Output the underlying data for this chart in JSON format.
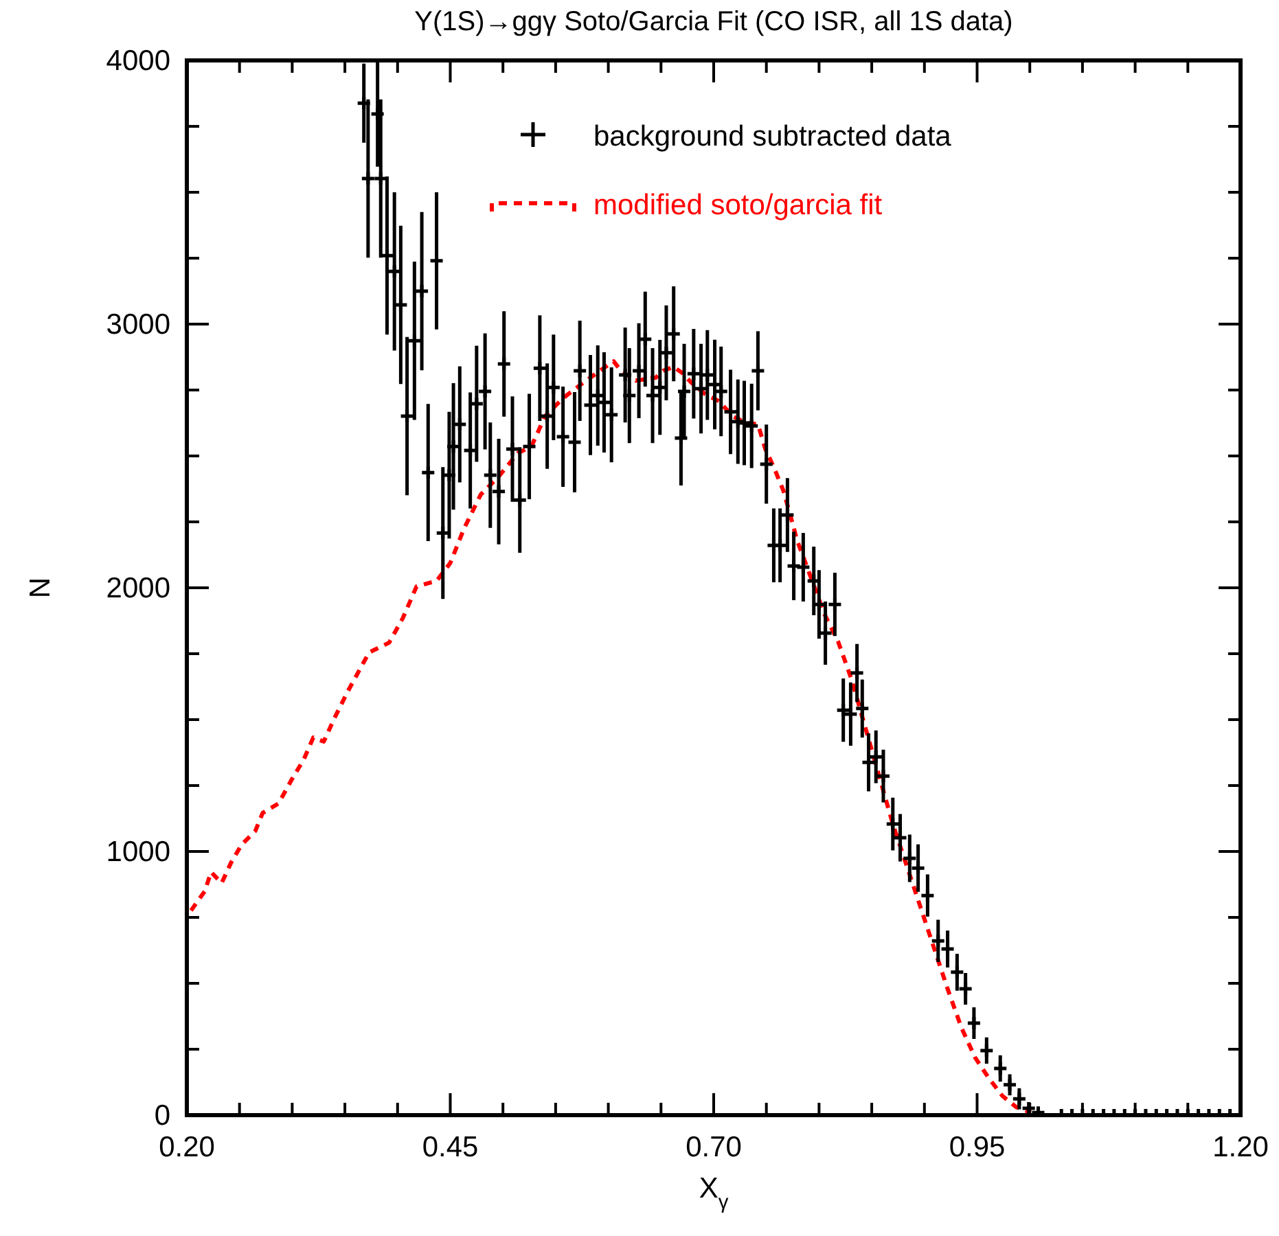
{
  "chart_data": {
    "type": "scatter",
    "title": "Υ(1S)→ggγ Soto/Garcia Fit (CO ISR, all 1S data)",
    "xlabel": "X$_{γ}$",
    "ylabel": "N",
    "xlim": [
      0.2,
      1.2
    ],
    "ylim": [
      0,
      4000
    ],
    "xticks": [
      {
        "value": 0.2,
        "label": "0.20"
      },
      {
        "value": 0.25,
        "label": null
      },
      {
        "value": 0.3,
        "label": null
      },
      {
        "value": 0.35,
        "label": null
      },
      {
        "value": 0.4,
        "label": null
      },
      {
        "value": 0.45,
        "label": "0.45"
      },
      {
        "value": 0.5,
        "label": null
      },
      {
        "value": 0.55,
        "label": null
      },
      {
        "value": 0.6,
        "label": null
      },
      {
        "value": 0.65,
        "label": null
      },
      {
        "value": 0.7,
        "label": "0.70"
      },
      {
        "value": 0.75,
        "label": null
      },
      {
        "value": 0.8,
        "label": null
      },
      {
        "value": 0.85,
        "label": null
      },
      {
        "value": 0.9,
        "label": null
      },
      {
        "value": 0.95,
        "label": "0.95"
      },
      {
        "value": 1.0,
        "label": null
      },
      {
        "value": 1.05,
        "label": null
      },
      {
        "value": 1.1,
        "label": null
      },
      {
        "value": 1.15,
        "label": null
      },
      {
        "value": 1.2,
        "label": "1.20"
      }
    ],
    "yticks": [
      0,
      {
        "value": 250,
        "label": null
      },
      {
        "value": 500,
        "label": null
      },
      {
        "value": 750,
        "label": null
      },
      1000,
      {
        "value": 1250,
        "label": null
      },
      {
        "value": 1500,
        "label": null
      },
      {
        "value": 1750,
        "label": null
      },
      2000,
      {
        "value": 2250,
        "label": null
      },
      {
        "value": 2500,
        "label": null
      },
      {
        "value": 2750,
        "label": null
      },
      3000,
      {
        "value": 3250,
        "label": null
      },
      {
        "value": 3500,
        "label": null
      },
      {
        "value": 3750,
        "label": null
      },
      4000
    ],
    "grid": false,
    "legend": "top right",
    "series": [
      {
        "name": "background subtracted data",
        "color": "#000000",
        "marker": "cross",
        "x": [
          0.368,
          0.372,
          0.381,
          0.384,
          0.39,
          0.397,
          0.403,
          0.409,
          0.416,
          0.423,
          0.429,
          0.437,
          0.443,
          0.449,
          0.453,
          0.459,
          0.469,
          0.475,
          0.483,
          0.488,
          0.496,
          0.501,
          0.509,
          0.516,
          0.525,
          0.535,
          0.542,
          0.548,
          0.557,
          0.568,
          0.573,
          0.583,
          0.59,
          0.596,
          0.603,
          0.616,
          0.62,
          0.629,
          0.635,
          0.642,
          0.649,
          0.655,
          0.662,
          0.669,
          0.672,
          0.681,
          0.688,
          0.694,
          0.701,
          0.707,
          0.716,
          0.723,
          0.729,
          0.736,
          0.742,
          0.75,
          0.757,
          0.763,
          0.77,
          0.776,
          0.785,
          0.795,
          0.8,
          0.806,
          0.815,
          0.823,
          0.83,
          0.836,
          0.841,
          0.847,
          0.854,
          0.861,
          0.87,
          0.877,
          0.886,
          0.894,
          0.903,
          0.913,
          0.922,
          0.931,
          0.939,
          0.947,
          0.959,
          0.972,
          0.981,
          0.99,
          0.999,
          1.008,
          1.03,
          1.04,
          1.05,
          1.06,
          1.07,
          1.08,
          1.09,
          1.1,
          1.11,
          1.12,
          1.13,
          1.14,
          1.15,
          1.16,
          1.17,
          1.18,
          1.19
        ],
        "values": [
          3838,
          3552,
          3797,
          3552,
          3260,
          3200,
          3073,
          2651,
          2937,
          3125,
          2437,
          3240,
          2208,
          2427,
          2536,
          2620,
          2521,
          2698,
          2745,
          2427,
          2365,
          2849,
          2526,
          2333,
          2536,
          2833,
          2651,
          2760,
          2573,
          2552,
          2823,
          2693,
          2729,
          2703,
          2656,
          2807,
          2729,
          2823,
          2943,
          2729,
          2760,
          2891,
          2963,
          2568,
          2745,
          2812,
          2755,
          2807,
          2771,
          2745,
          2667,
          2630,
          2625,
          2614,
          2823,
          2469,
          2161,
          2161,
          2276,
          2083,
          2078,
          2026,
          1937,
          1828,
          1937,
          1536,
          1521,
          1677,
          1542,
          1338,
          1359,
          1286,
          1104,
          1052,
          974,
          937,
          833,
          661,
          630,
          542,
          479,
          349,
          245,
          177,
          115,
          62,
          26,
          10,
          0,
          0,
          0,
          0,
          0,
          0,
          0,
          0,
          0,
          0,
          0,
          0,
          0,
          0,
          0,
          0,
          0
        ],
        "errors": [
          150,
          300,
          200,
          300,
          300,
          300,
          300,
          300,
          300,
          300,
          260,
          260,
          250,
          240,
          240,
          220,
          220,
          220,
          220,
          200,
          200,
          200,
          200,
          200,
          200,
          200,
          200,
          200,
          190,
          190,
          190,
          190,
          190,
          190,
          180,
          180,
          180,
          180,
          180,
          180,
          180,
          180,
          180,
          180,
          180,
          170,
          170,
          170,
          170,
          170,
          160,
          160,
          160,
          160,
          150,
          150,
          140,
          140,
          140,
          130,
          130,
          130,
          130,
          120,
          120,
          120,
          120,
          110,
          110,
          110,
          100,
          100,
          100,
          90,
          90,
          90,
          80,
          80,
          70,
          70,
          60,
          60,
          50,
          50,
          40,
          40,
          null,
          null,
          null,
          null,
          null,
          null,
          null,
          null,
          null,
          null,
          null,
          null,
          null,
          null,
          null,
          null,
          null,
          null,
          null
        ]
      },
      {
        "name": "modified soto/garcia fit",
        "type": "line",
        "color": "#ff0000",
        "line_style": "dashed",
        "marker": "none",
        "x": [
          0.204,
          0.217,
          0.223,
          0.233,
          0.242,
          0.252,
          0.265,
          0.272,
          0.287,
          0.3,
          0.311,
          0.32,
          0.33,
          0.34,
          0.353,
          0.363,
          0.373,
          0.392,
          0.405,
          0.418,
          0.437,
          0.45,
          0.463,
          0.479,
          0.496,
          0.514,
          0.527,
          0.54,
          0.557,
          0.574,
          0.592,
          0.605,
          0.612,
          0.626,
          0.645,
          0.652,
          0.662,
          0.671,
          0.678,
          0.692,
          0.705,
          0.718,
          0.731,
          0.742,
          0.749,
          0.757,
          0.766,
          0.772,
          0.779,
          0.792,
          0.805,
          0.818,
          0.831,
          0.844,
          0.857,
          0.87,
          0.883,
          0.896,
          0.909,
          0.922,
          0.935,
          0.948,
          0.961,
          0.974,
          0.987,
          1.001
        ],
        "values": [
          776,
          849,
          922,
          880,
          958,
          1026,
          1078,
          1146,
          1182,
          1276,
          1349,
          1432,
          1417,
          1505,
          1609,
          1682,
          1755,
          1792,
          1885,
          2005,
          2026,
          2094,
          2224,
          2354,
          2422,
          2510,
          2536,
          2651,
          2719,
          2771,
          2823,
          2859,
          2823,
          2786,
          2797,
          2823,
          2838,
          2812,
          2781,
          2734,
          2708,
          2651,
          2625,
          2620,
          2526,
          2458,
          2370,
          2286,
          2182,
          2042,
          1901,
          1797,
          1651,
          1469,
          1286,
          1104,
          948,
          792,
          635,
          479,
          333,
          219,
          141,
          73,
          31,
          10
        ]
      }
    ]
  }
}
